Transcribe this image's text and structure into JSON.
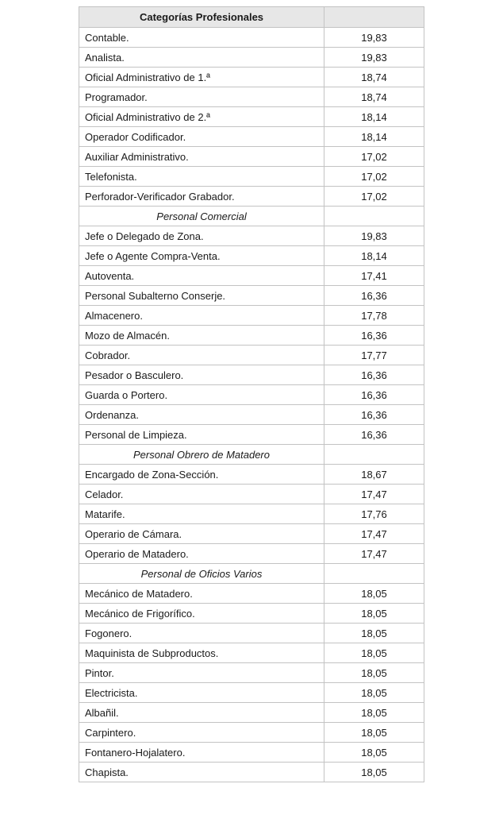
{
  "colors": {
    "header_bg": "#e7e7e7",
    "border": "#c3c3c3",
    "text": "#1a1a1a",
    "row_bg": "#ffffff"
  },
  "table": {
    "header": {
      "category": "Categorías Profesionales",
      "value": ""
    },
    "rows": [
      {
        "type": "item",
        "label": "Contable.",
        "value": "19,83"
      },
      {
        "type": "item",
        "label": "Analista.",
        "value": "19,83"
      },
      {
        "type": "item",
        "label": "Oficial Administrativo de 1.ª",
        "value": "18,74"
      },
      {
        "type": "item",
        "label": "Programador.",
        "value": "18,74"
      },
      {
        "type": "item",
        "label": "Oficial Administrativo de 2.ª",
        "value": "18,14"
      },
      {
        "type": "item",
        "label": "Operador Codificador.",
        "value": "18,14"
      },
      {
        "type": "item",
        "label": "Auxiliar Administrativo.",
        "value": "17,02"
      },
      {
        "type": "item",
        "label": "Telefonista.",
        "value": "17,02"
      },
      {
        "type": "item",
        "label": "Perforador-Verificador Grabador.",
        "value": "17,02"
      },
      {
        "type": "section",
        "label": "Personal Comercial",
        "value": ""
      },
      {
        "type": "item",
        "label": "Jefe o Delegado de Zona.",
        "value": "19,83"
      },
      {
        "type": "item",
        "label": "Jefe o Agente Compra-Venta.",
        "value": "18,14"
      },
      {
        "type": "item",
        "label": "Autoventa.",
        "value": "17,41"
      },
      {
        "type": "item",
        "label": "Personal Subalterno Conserje.",
        "value": "16,36"
      },
      {
        "type": "item",
        "label": "Almacenero.",
        "value": "17,78"
      },
      {
        "type": "item",
        "label": "Mozo de Almacén.",
        "value": "16,36"
      },
      {
        "type": "item",
        "label": "Cobrador.",
        "value": "17,77"
      },
      {
        "type": "item",
        "label": "Pesador o Basculero.",
        "value": "16,36"
      },
      {
        "type": "item",
        "label": "Guarda o Portero.",
        "value": "16,36"
      },
      {
        "type": "item",
        "label": "Ordenanza.",
        "value": "16,36"
      },
      {
        "type": "item",
        "label": "Personal de Limpieza.",
        "value": "16,36"
      },
      {
        "type": "section",
        "label": "Personal Obrero de Matadero",
        "value": ""
      },
      {
        "type": "item",
        "label": "Encargado de Zona-Sección.",
        "value": "18,67"
      },
      {
        "type": "item",
        "label": "Celador.",
        "value": "17,47"
      },
      {
        "type": "item",
        "label": "Matarife.",
        "value": "17,76"
      },
      {
        "type": "item",
        "label": "Operario de Cámara.",
        "value": "17,47"
      },
      {
        "type": "item",
        "label": "Operario de Matadero.",
        "value": "17,47"
      },
      {
        "type": "section",
        "label": "Personal de Oficios Varios",
        "value": ""
      },
      {
        "type": "item",
        "label": "Mecánico de Matadero.",
        "value": "18,05"
      },
      {
        "type": "item",
        "label": "Mecánico de Frigorífico.",
        "value": "18,05"
      },
      {
        "type": "item",
        "label": "Fogonero.",
        "value": "18,05"
      },
      {
        "type": "item",
        "label": "Maquinista de Subproductos.",
        "value": "18,05"
      },
      {
        "type": "item",
        "label": "Pintor.",
        "value": "18,05"
      },
      {
        "type": "item",
        "label": "Electricista.",
        "value": "18,05"
      },
      {
        "type": "item",
        "label": "Albañil.",
        "value": "18,05"
      },
      {
        "type": "item",
        "label": "Carpintero.",
        "value": "18,05"
      },
      {
        "type": "item",
        "label": "Fontanero-Hojalatero.",
        "value": "18,05"
      },
      {
        "type": "item",
        "label": "Chapista.",
        "value": "18,05"
      }
    ]
  }
}
